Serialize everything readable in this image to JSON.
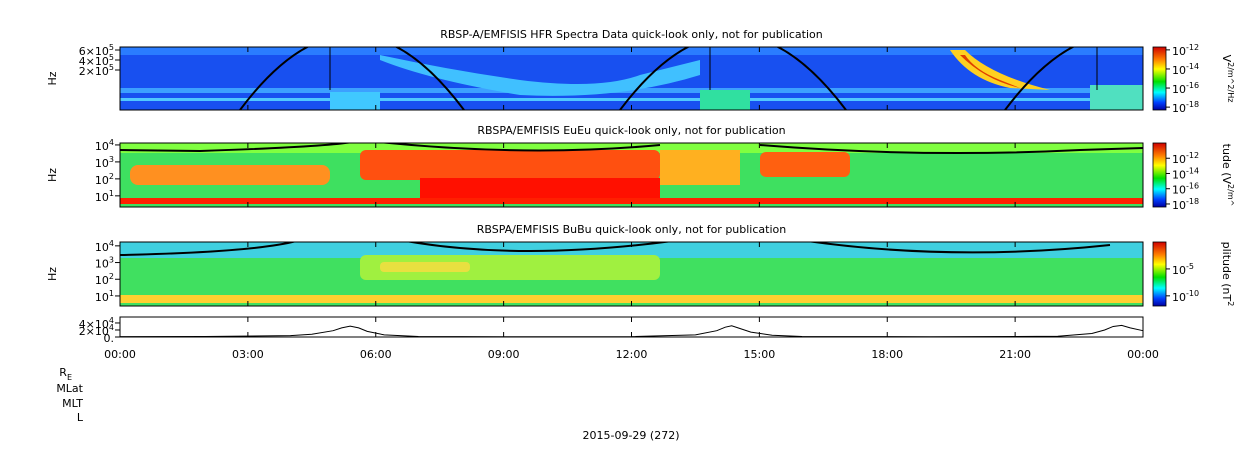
{
  "chart_data": [
    {
      "type": "spectrogram",
      "title": "RBSP-A/EMFISIS  HFR Spectra Data quick-look only, not for publication",
      "y_label": "Hz",
      "ylog": false,
      "ylim": [
        -600000,
        660000
      ],
      "yticks": [
        {
          "value": 200000,
          "label": "2×10^5"
        },
        {
          "value": 400000,
          "label": "4×10^5"
        },
        {
          "value": 600000,
          "label": "6×10^5"
        }
      ],
      "colorbar": {
        "label": "V^2/m^2/Hz",
        "lim": [
          5e-19,
          2e-12
        ],
        "ticks": [
          {
            "value": 1e-12,
            "label": "10^-12"
          },
          {
            "value": 1e-14,
            "label": "10^-14"
          },
          {
            "value": 1e-16,
            "label": "10^-16"
          },
          {
            "value": 1e-18,
            "label": "10^-18"
          }
        ]
      }
    },
    {
      "type": "spectrogram",
      "title": "RBSPA/EMFISIS  EuEu quick-look only, not for publication",
      "y_label": "Hz",
      "ylog": true,
      "ylim": [
        2.2,
        13000
      ],
      "yticks": [
        {
          "value": 10,
          "label": "10^1"
        },
        {
          "value": 100,
          "label": "10^2"
        },
        {
          "value": 1000,
          "label": "10^3"
        },
        {
          "value": 10000,
          "label": "10^4"
        }
      ],
      "colorbar": {
        "label": "tude (V^2/m^",
        "lim": [
          4e-19,
          1e-10
        ],
        "ticks": [
          {
            "value": 1e-12,
            "label": "10^-12"
          },
          {
            "value": 1e-14,
            "label": "10^-14"
          },
          {
            "value": 1e-16,
            "label": "10^-16"
          },
          {
            "value": 1e-18,
            "label": "10^-18"
          }
        ]
      }
    },
    {
      "type": "spectrogram",
      "title": "RBSPA/EMFISIS  BuBu quick-look only, not for publication",
      "y_label": "Hz",
      "ylog": true,
      "ylim": [
        2.5,
        17000
      ],
      "yticks": [
        {
          "value": 10,
          "label": "10^1"
        },
        {
          "value": 100,
          "label": "10^2"
        },
        {
          "value": 1000,
          "label": "10^3"
        },
        {
          "value": 10000,
          "label": "10^4"
        }
      ],
      "colorbar": {
        "label": "plitude (nT^2",
        "lim": [
          1.3e-12,
          1
        ],
        "ticks": [
          {
            "value": 1e-05,
            "label": "10^-5"
          },
          {
            "value": 1e-10,
            "label": "10^-10"
          }
        ]
      }
    },
    {
      "type": "line",
      "color": "#000000",
      "ylog": false,
      "ylim": [
        0,
        57000
      ],
      "yticks": [
        {
          "value": 0,
          "label": "0."
        },
        {
          "value": 20000,
          "label": "2×10^4"
        },
        {
          "value": 40000,
          "label": "4×10^4"
        }
      ],
      "xlim": [
        0,
        24
      ],
      "xticks": [
        {
          "value": 0,
          "label": "00:00"
        },
        {
          "value": 3,
          "label": "03:00"
        },
        {
          "value": 6,
          "label": "06:00"
        },
        {
          "value": 9,
          "label": "09:00"
        },
        {
          "value": 12,
          "label": "12:00"
        },
        {
          "value": 15,
          "label": "15:00"
        },
        {
          "value": 18,
          "label": "18:00"
        },
        {
          "value": 21,
          "label": "21:00"
        },
        {
          "value": 24,
          "label": "00:00"
        }
      ],
      "x": [
        0,
        2,
        4,
        4.5,
        5,
        5.2,
        5.4,
        5.6,
        5.8,
        6.2,
        7,
        9,
        12,
        13.5,
        14,
        14.2,
        14.35,
        14.5,
        14.8,
        15.3,
        16,
        19,
        22,
        22.8,
        23.1,
        23.3,
        23.5,
        23.7,
        24
      ],
      "values": [
        1000,
        1600,
        4000,
        8000,
        18000,
        26000,
        31000,
        26000,
        16000,
        6000,
        1600,
        600,
        1000,
        6000,
        18000,
        28000,
        32000,
        26000,
        14000,
        5000,
        1600,
        600,
        2000,
        10000,
        20000,
        30000,
        33000,
        26000,
        18000
      ]
    }
  ],
  "footer": {
    "ephemeris_labels": [
      "R_E",
      "MLat",
      "MLT",
      "L"
    ],
    "date": "2015-09-29 (272)"
  }
}
